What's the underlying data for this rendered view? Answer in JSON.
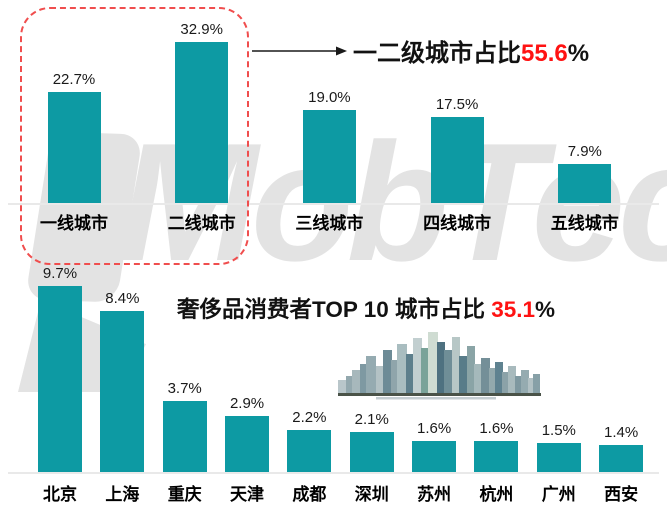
{
  "watermark": {
    "text": "MobTech",
    "logo": "mobtech-logo-mark"
  },
  "colors": {
    "bar_teal": "#0d9aa3",
    "highlight_red": "#ff1212",
    "dashed_box_red": "#f04e4e",
    "watermark_gray": "#e3e3e3",
    "axis_gray": "#e9e9e9",
    "label_dark": "#1a1a1a"
  },
  "top_chart_annotation": {
    "prefix": "一二级城市占比",
    "value": "55.6",
    "suffix": "%"
  },
  "bottom_chart_title": {
    "prefix": "奢侈品消费者TOP 10 城市占比 ",
    "value": "35.1",
    "suffix": "%"
  },
  "chart_data": [
    {
      "type": "bar",
      "title": "一二级城市占比55.6%",
      "categories": [
        "一线城市",
        "二线城市",
        "三线城市",
        "四线城市",
        "五线城市"
      ],
      "values": [
        22.7,
        32.9,
        19.0,
        17.5,
        7.9
      ],
      "value_labels": [
        "22.7%",
        "32.9%",
        "19.0%",
        "17.5%",
        "7.9%"
      ],
      "unit": "%",
      "ylim": [
        0,
        40
      ],
      "grid": false,
      "legend": "none",
      "annotation": {
        "highlighted_categories": [
          "一线城市",
          "二线城市"
        ],
        "combined_value": "55.6%",
        "style": "red-dashed-outline-with-arrow"
      }
    },
    {
      "type": "bar",
      "title": "奢侈品消费者TOP 10 城市占比 35.1%",
      "categories": [
        "北京",
        "上海",
        "重庆",
        "天津",
        "成都",
        "深圳",
        "苏州",
        "杭州",
        "广州",
        "西安"
      ],
      "values": [
        9.7,
        8.4,
        3.7,
        2.9,
        2.2,
        2.1,
        1.6,
        1.6,
        1.5,
        1.4
      ],
      "value_labels": [
        "9.7%",
        "8.4%",
        "3.7%",
        "2.9%",
        "2.2%",
        "2.1%",
        "1.6%",
        "1.6%",
        "1.5%",
        "1.4%"
      ],
      "unit": "%",
      "ylim": [
        0,
        11
      ],
      "grid": false,
      "legend": "none",
      "combined_value": "35.1%"
    }
  ]
}
